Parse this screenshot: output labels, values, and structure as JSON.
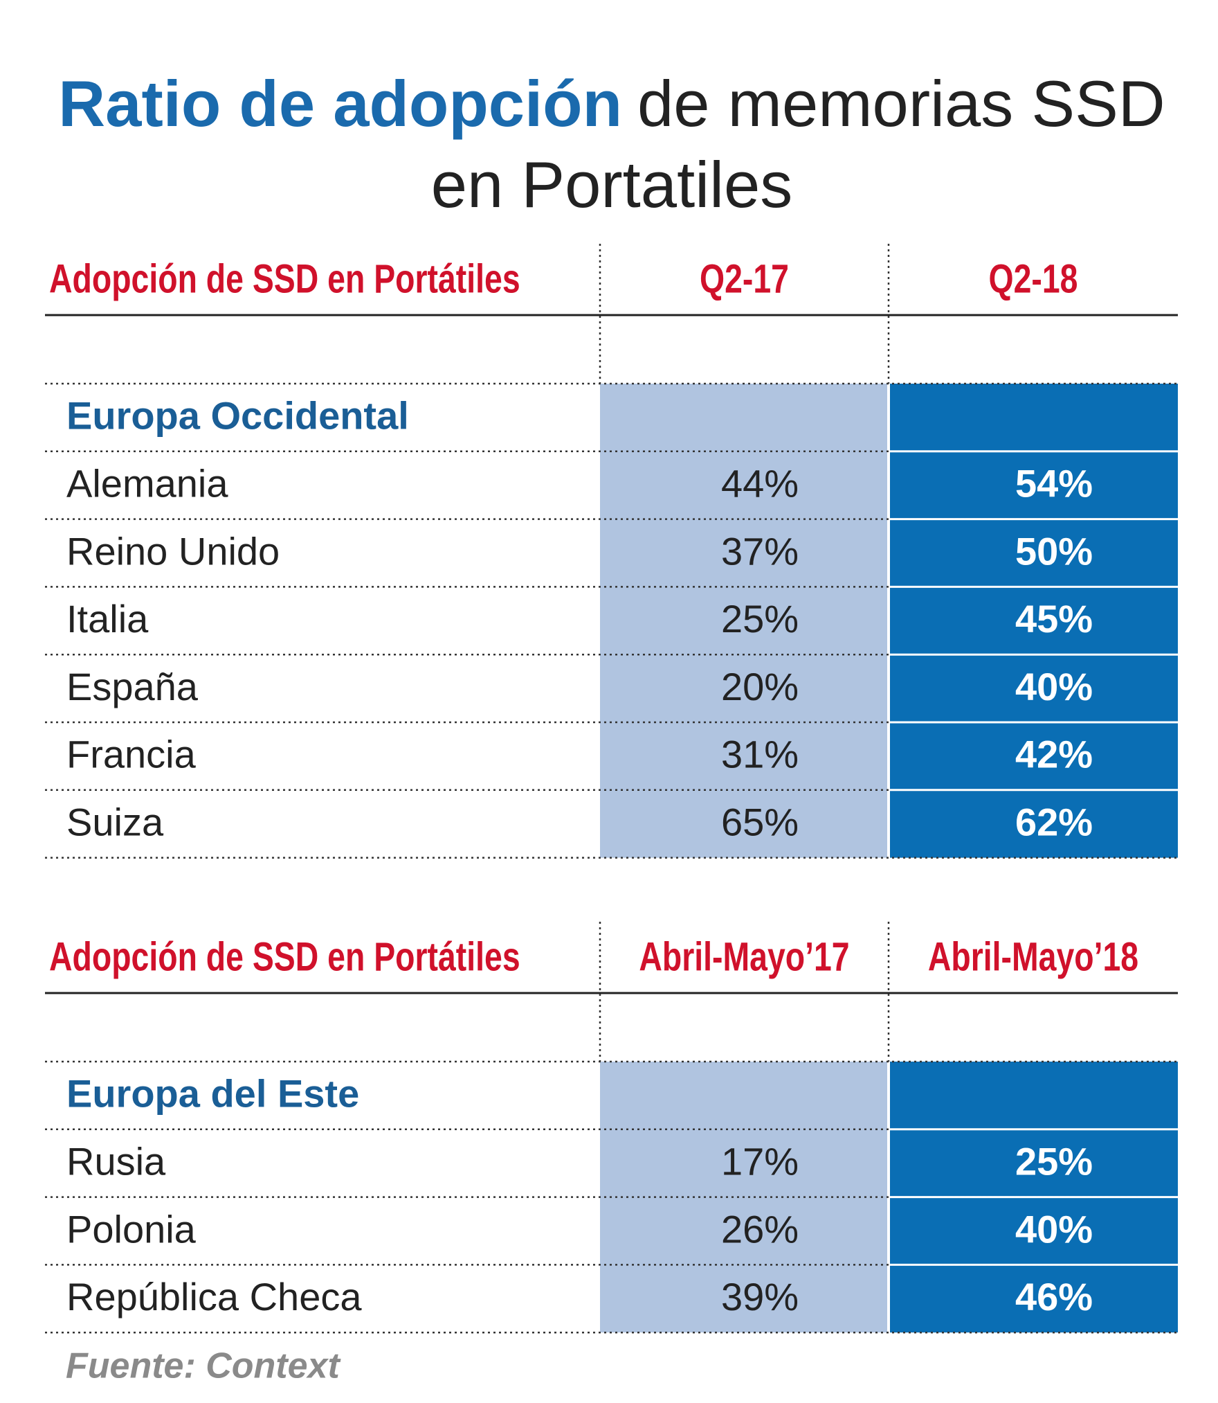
{
  "title": {
    "highlight": "Ratio de adopción",
    "rest_line1": "de memorias SSD",
    "line2": "en Portatiles"
  },
  "sections": [
    {
      "header": [
        "Adopción de SSD en Portátiles",
        "Q2-17",
        "Q2-18"
      ],
      "group": "Europa Occidental",
      "rows": [
        [
          "Alemania",
          "44%",
          "54%"
        ],
        [
          "Reino Unido",
          "37%",
          "50%"
        ],
        [
          "Italia",
          "25%",
          "45%"
        ],
        [
          "España",
          "20%",
          "40%"
        ],
        [
          "Francia",
          "31%",
          "42%"
        ],
        [
          "Suiza",
          "65%",
          "62%"
        ]
      ]
    },
    {
      "header": [
        "Adopción de SSD en Portátiles",
        "Abril-Mayo’17",
        "Abril-Mayo’18"
      ],
      "group": "Europa del Este",
      "rows": [
        [
          "Rusia",
          "17%",
          "25%"
        ],
        [
          "Polonia",
          "26%",
          "40%"
        ],
        [
          "República Checa",
          "39%",
          "46%"
        ]
      ]
    }
  ],
  "source": "Fuente: Context"
}
